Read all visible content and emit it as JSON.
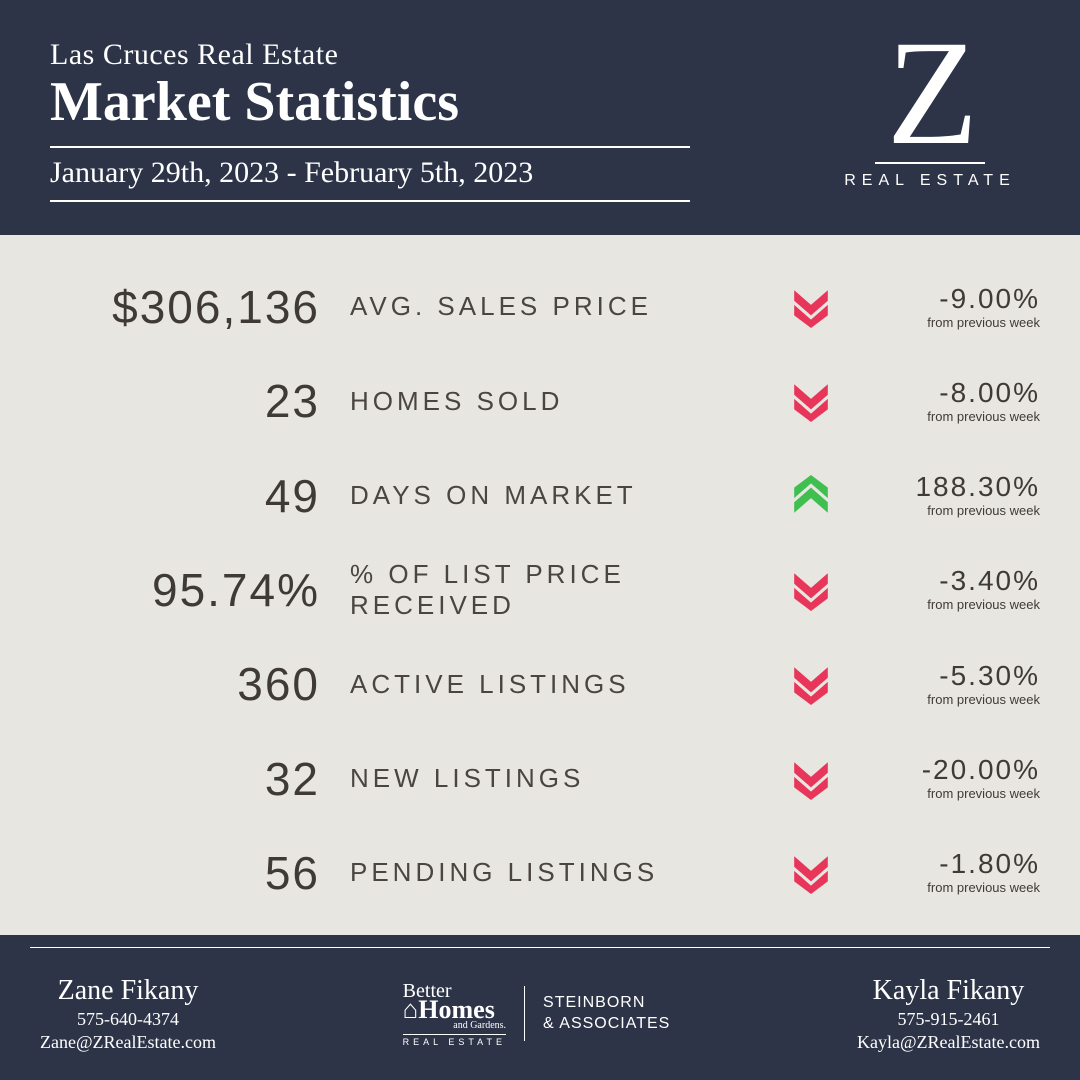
{
  "colors": {
    "header_bg": "#2d3447",
    "body_bg": "#e8e6e1",
    "text_dark": "#3f3a36",
    "text_white": "#ffffff",
    "down_arrow": "#e8355a",
    "up_arrow": "#3fbf4f"
  },
  "header": {
    "subtitle": "Las Cruces Real Estate",
    "title": "Market Statistics",
    "date_range": "January 29th, 2023 - February 5th, 2023"
  },
  "logo": {
    "letter": "Z",
    "sub": "REAL ESTATE"
  },
  "stats": [
    {
      "value": "$306,136",
      "label": "AVG. SALES PRICE",
      "direction": "down",
      "pct": "-9.00%",
      "sub": "from previous week"
    },
    {
      "value": "23",
      "label": "HOMES SOLD",
      "direction": "down",
      "pct": "-8.00%",
      "sub": "from previous week"
    },
    {
      "value": "49",
      "label": "DAYS ON MARKET",
      "direction": "up",
      "pct": "188.30%",
      "sub": "from previous week"
    },
    {
      "value": "95.74%",
      "label": "% OF LIST PRICE RECEIVED",
      "direction": "down",
      "pct": "-3.40%",
      "sub": "from previous week"
    },
    {
      "value": "360",
      "label": "ACTIVE LISTINGS",
      "direction": "down",
      "pct": "-5.30%",
      "sub": "from previous week"
    },
    {
      "value": "32",
      "label": "NEW LISTINGS",
      "direction": "down",
      "pct": "-20.00%",
      "sub": "from previous week"
    },
    {
      "value": "56",
      "label": "PENDING LISTINGS",
      "direction": "down",
      "pct": "-1.80%",
      "sub": "from previous week"
    }
  ],
  "footer": {
    "left": {
      "name": "Zane Fikany",
      "phone": "575-640-4374",
      "email": "Zane@ZRealEstate.com"
    },
    "center": {
      "bhg_better": "Better",
      "bhg_homes": "⌂Homes",
      "bhg_gardens": "and Gardens.",
      "bhg_re": "REAL ESTATE",
      "steinborn_l1": "STEINBORN",
      "steinborn_l2": "& ASSOCIATES"
    },
    "right": {
      "name": "Kayla Fikany",
      "phone": "575-915-2461",
      "email": "Kayla@ZRealEstate.com"
    }
  }
}
